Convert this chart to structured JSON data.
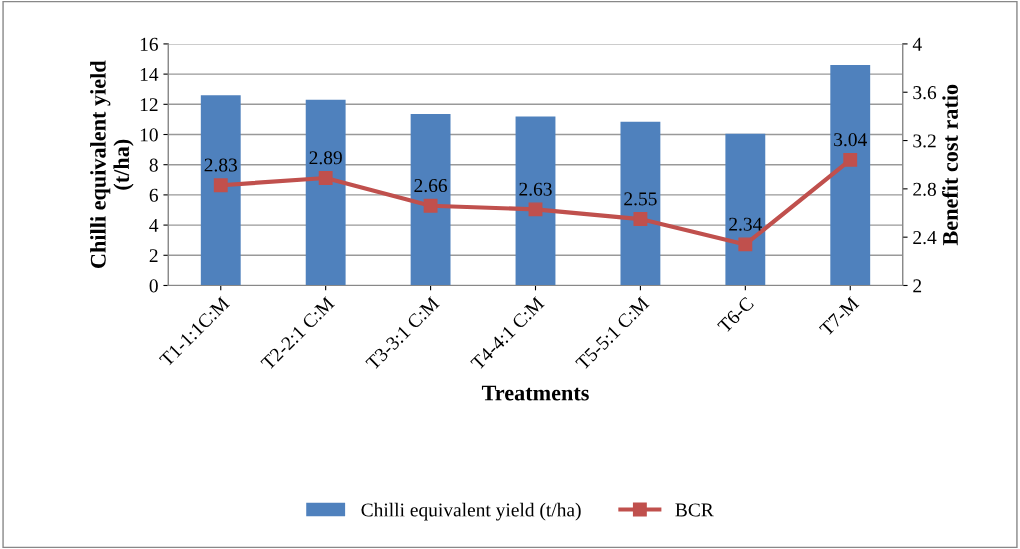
{
  "chart_data": {
    "type": "bar",
    "xlabel": "Treatments",
    "ylabel": "Chilli equivalent yield\n(t/ha)",
    "y2label": "Benefit cost ratio",
    "categories": [
      "T1-1:1C:M",
      "T2-2:1 C:M",
      "T3-3:1 C:M",
      "T4-4:1 C:M",
      "T5-5:1 C:M",
      "T6-C",
      "T7-M"
    ],
    "series": [
      {
        "name": "Chilli equivalent yield (t/ha)",
        "color": "#4f81bd",
        "values": [
          12.6,
          12.3,
          11.35,
          11.2,
          10.85,
          10.05,
          14.6
        ]
      },
      {
        "name": "BCR",
        "color": "#c0504d",
        "type": "line",
        "axis": "y2",
        "marker": "square",
        "data_labels": true,
        "values": [
          2.83,
          2.89,
          2.66,
          2.63,
          2.55,
          2.34,
          3.04
        ]
      }
    ],
    "ylim": [
      0,
      16
    ],
    "yticks": [
      0,
      2,
      4,
      6,
      8,
      10,
      12,
      14,
      16
    ],
    "y2lim": [
      2,
      4
    ],
    "y2ticks": [
      2,
      2.4,
      2.8,
      3.2,
      3.6,
      4
    ],
    "grid": "y",
    "legend": "bottom"
  }
}
